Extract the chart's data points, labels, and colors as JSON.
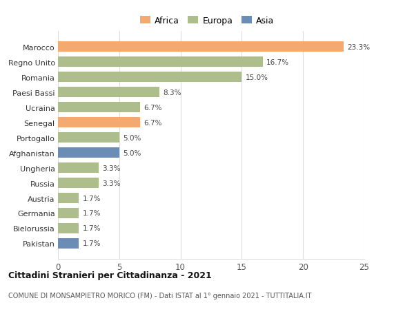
{
  "categories": [
    "Marocco",
    "Regno Unito",
    "Romania",
    "Paesi Bassi",
    "Ucraina",
    "Senegal",
    "Portogallo",
    "Afghanistan",
    "Ungheria",
    "Russia",
    "Austria",
    "Germania",
    "Bielorussia",
    "Pakistan"
  ],
  "values": [
    23.3,
    16.7,
    15.0,
    8.3,
    6.7,
    6.7,
    5.0,
    5.0,
    3.3,
    3.3,
    1.7,
    1.7,
    1.7,
    1.7
  ],
  "continent": [
    "Africa",
    "Europa",
    "Europa",
    "Europa",
    "Europa",
    "Africa",
    "Europa",
    "Asia",
    "Europa",
    "Europa",
    "Europa",
    "Europa",
    "Europa",
    "Asia"
  ],
  "colors": {
    "Africa": "#F4A970",
    "Europa": "#ADBE8C",
    "Asia": "#6B8DB5"
  },
  "legend_colors": {
    "Africa": "#F4A970",
    "Europa": "#ADBE8C",
    "Asia": "#6B8DB5"
  },
  "xlim": [
    0,
    25
  ],
  "xticks": [
    0,
    5,
    10,
    15,
    20,
    25
  ],
  "title": "Cittadini Stranieri per Cittadinanza - 2021",
  "subtitle": "COMUNE DI MONSAMPIETRO MORICO (FM) - Dati ISTAT al 1° gennaio 2021 - TUTTITALIA.IT",
  "background_color": "#ffffff",
  "bar_height": 0.7,
  "grid_color": "#dddddd"
}
